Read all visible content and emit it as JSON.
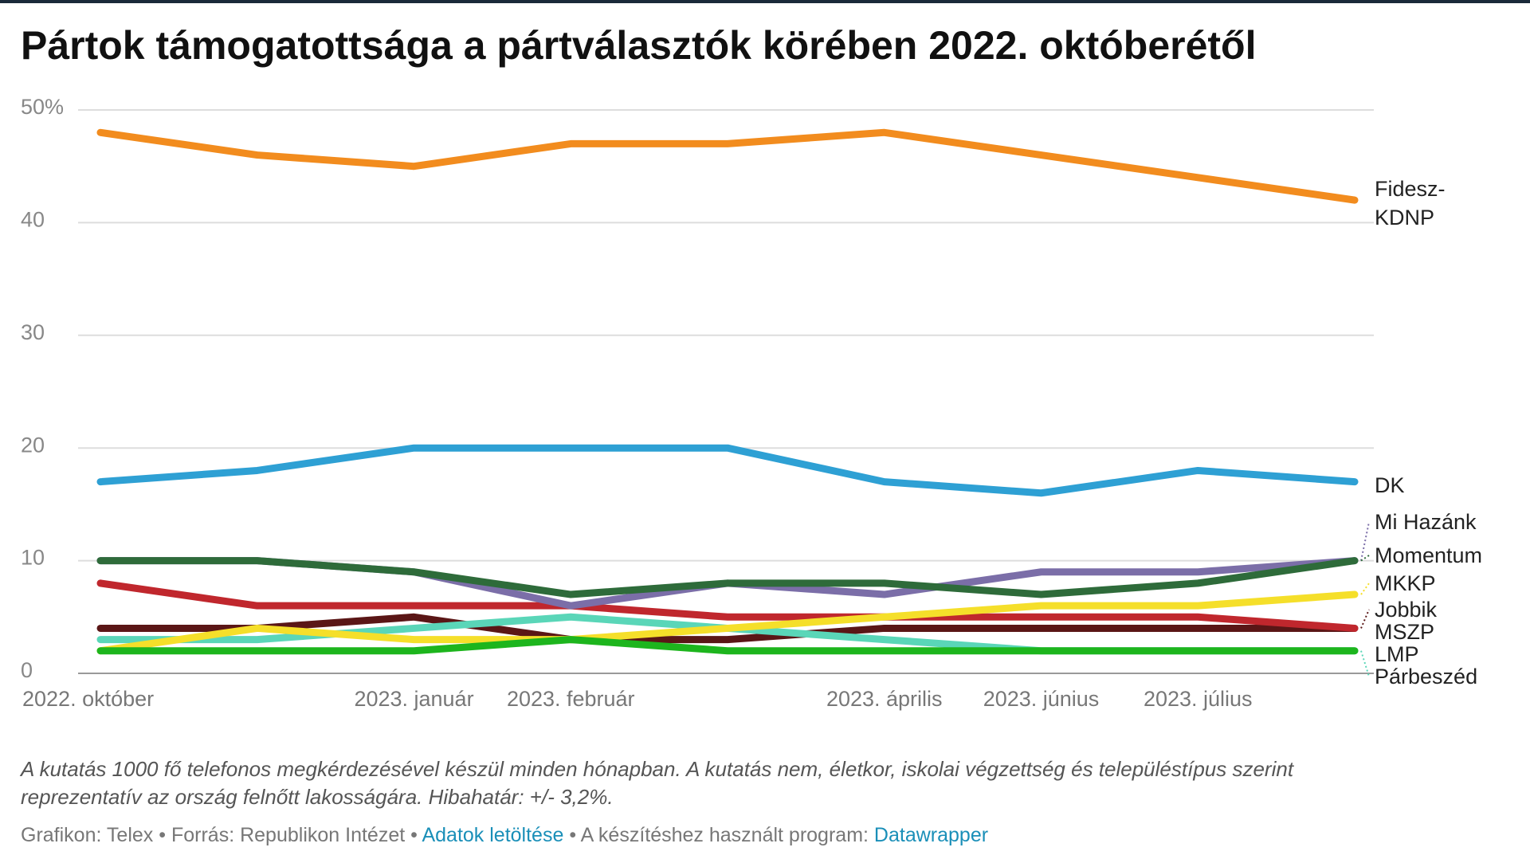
{
  "chart_data": {
    "type": "line",
    "title": "Pártok támogatottsága a pártválasztók körében 2022. októberétől",
    "categories": [
      "2022. október",
      null,
      "2023. január",
      "2023. február",
      null,
      "2023. április",
      "2023. június",
      "2023. július",
      null
    ],
    "series": [
      {
        "name": "Fidesz-KDNP",
        "color": "#f28c1e",
        "values": [
          48,
          46,
          45,
          47,
          47,
          48,
          46,
          44,
          42
        ]
      },
      {
        "name": "DK",
        "color": "#2ea0d4",
        "values": [
          17,
          18,
          20,
          20,
          20,
          17,
          16,
          18,
          17
        ]
      },
      {
        "name": "Mi Hazánk",
        "color": "#7b6ea8",
        "values": [
          10,
          10,
          9,
          6,
          8,
          7,
          9,
          9,
          10
        ]
      },
      {
        "name": "Momentum",
        "color": "#2e6b3a",
        "values": [
          10,
          10,
          9,
          7,
          8,
          8,
          7,
          8,
          10
        ]
      },
      {
        "name": "MKKP",
        "color": "#f5df2a",
        "values": [
          2,
          4,
          3,
          3,
          4,
          5,
          6,
          6,
          7
        ]
      },
      {
        "name": "Jobbik",
        "color": "#5a1616",
        "values": [
          4,
          4,
          5,
          3,
          3,
          4,
          4,
          4,
          4
        ]
      },
      {
        "name": "MSZP",
        "color": "#c0272d",
        "values": [
          8,
          6,
          6,
          6,
          5,
          5,
          5,
          5,
          4
        ]
      },
      {
        "name": "LMP",
        "color": "#1db51d",
        "values": [
          2,
          2,
          2,
          3,
          2,
          2,
          2,
          2,
          2
        ]
      },
      {
        "name": "Párbeszéd",
        "color": "#5ad6b8",
        "values": [
          3,
          3,
          4,
          5,
          4,
          3,
          2,
          2,
          2
        ]
      }
    ],
    "ylim": [
      0,
      50
    ],
    "yticks": [
      0,
      10,
      20,
      30,
      40,
      {
        "value": 50,
        "label": "50%"
      }
    ],
    "grid": true
  },
  "notes": [
    "A kutatás 1000 fő telefonos megkérdezésével készül minden hónapban. A kutatás nem, életkor, iskolai végzettség és településtípus szerint",
    "reprezentatív az ország felnőtt lakosságára. Hibahatár: +/- 3,2%."
  ],
  "footer": {
    "credit": "Grafikon: Telex",
    "separator": "•",
    "source": "Forrás: Republikon Intézet",
    "download": "Adatok letöltése",
    "program": "A készítéshez használt program:",
    "tool": "Datawrapper"
  }
}
